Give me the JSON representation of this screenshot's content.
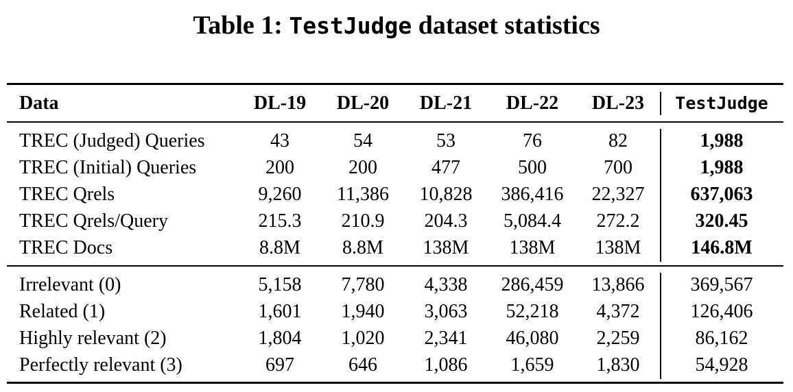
{
  "caption": {
    "prefix": "Table 1: ",
    "name": "TestJudge",
    "suffix": " dataset statistics"
  },
  "table": {
    "headers": [
      "Data",
      "DL-19",
      "DL-20",
      "DL-21",
      "DL-22",
      "DL-23",
      "TestJudge"
    ],
    "section1": [
      {
        "label": "TREC (Judged) Queries",
        "values": [
          "43",
          "54",
          "53",
          "76",
          "82"
        ],
        "total": "1,988"
      },
      {
        "label": "TREC (Initial) Queries",
        "values": [
          "200",
          "200",
          "477",
          "500",
          "700"
        ],
        "total": "1,988"
      },
      {
        "label": "TREC Qrels",
        "values": [
          "9,260",
          "11,386",
          "10,828",
          "386,416",
          "22,327"
        ],
        "total": "637,063"
      },
      {
        "label": "TREC Qrels/Query",
        "values": [
          "215.3",
          "210.9",
          "204.3",
          "5,084.4",
          "272.2"
        ],
        "total": "320.45"
      },
      {
        "label": "TREC Docs",
        "values": [
          "8.8M",
          "8.8M",
          "138M",
          "138M",
          "138M"
        ],
        "total": "146.8M"
      }
    ],
    "section2": [
      {
        "label": "Irrelevant (0)",
        "values": [
          "5,158",
          "7,780",
          "4,338",
          "286,459",
          "13,866"
        ],
        "total": "369,567"
      },
      {
        "label": "Related (1)",
        "values": [
          "1,601",
          "1,940",
          "3,063",
          "52,218",
          "4,372"
        ],
        "total": "126,406"
      },
      {
        "label": "Highly relevant (2)",
        "values": [
          "1,804",
          "1,020",
          "2,341",
          "46,080",
          "2,259"
        ],
        "total": "86,162"
      },
      {
        "label": "Perfectly relevant (3)",
        "values": [
          "697",
          "646",
          "1,086",
          "1,659",
          "1,830"
        ],
        "total": "54,928"
      }
    ]
  }
}
